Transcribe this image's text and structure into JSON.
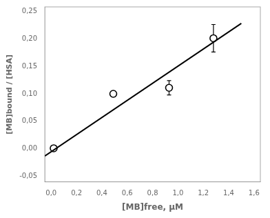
{
  "chart_data": {
    "type": "scatter",
    "xlabel": "[MB]free, μM",
    "ylabel": "[MB]bound / [HSA]",
    "grid": false,
    "series": [
      {
        "type": "line",
        "color": "#000000",
        "line_style": "solid",
        "x": [
          -0.05,
          1.5
        ],
        "values": [
          -0.013,
          0.228
        ]
      },
      {
        "type": "scatter",
        "color": "#000000",
        "marker": "circle",
        "x": [
          0.02,
          0.49,
          0.93,
          1.28
        ],
        "values": [
          0.001,
          0.1,
          0.111,
          0.201
        ],
        "y_err": [
          0.004,
          0.005,
          0.013,
          0.025
        ]
      }
    ],
    "xlim": [
      -0.05,
      1.65
    ],
    "ylim": [
      -0.06,
      0.258
    ],
    "xticks": [
      {
        "value": 0.0,
        "label": "0,0"
      },
      {
        "value": 0.2,
        "label": "0,2"
      },
      {
        "value": 0.4,
        "label": "0,4"
      },
      {
        "value": 0.6,
        "label": "0,6"
      },
      {
        "value": 0.8,
        "label": "0,8"
      },
      {
        "value": 1.0,
        "label": "1,0"
      },
      {
        "value": 1.2,
        "label": "1,2"
      },
      {
        "value": 1.4,
        "label": "1,4"
      },
      {
        "value": 1.6,
        "label": "1,6"
      }
    ],
    "yticks": [
      {
        "value": -0.05,
        "label": "-0,05"
      },
      {
        "value": 0.0,
        "label": "0,00"
      },
      {
        "value": 0.05,
        "label": "0,05"
      },
      {
        "value": 0.1,
        "label": "0,10"
      },
      {
        "value": 0.15,
        "label": "0,15"
      },
      {
        "value": 0.2,
        "label": "0,20"
      },
      {
        "value": 0.25,
        "label": "0,25"
      }
    ]
  }
}
